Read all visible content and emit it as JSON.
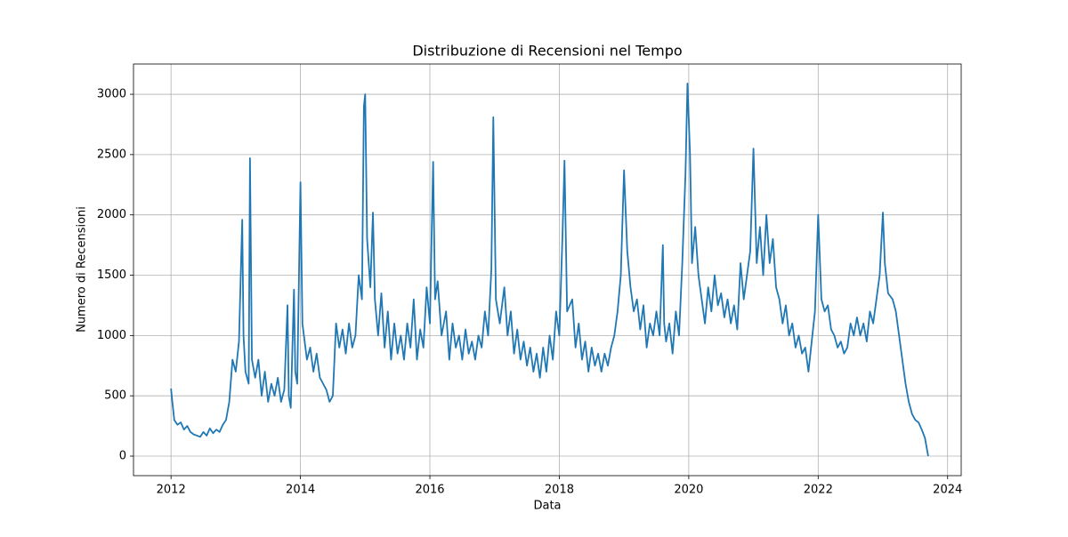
{
  "chart_data": {
    "type": "line",
    "title": "Distribuzione di Recensioni nel Tempo",
    "xlabel": "Data",
    "ylabel": "Numero di Recensioni",
    "x": [
      2012.0,
      2012.02,
      2012.05,
      2012.1,
      2012.15,
      2012.2,
      2012.25,
      2012.3,
      2012.35,
      2012.4,
      2012.45,
      2012.5,
      2012.55,
      2012.6,
      2012.65,
      2012.7,
      2012.75,
      2012.8,
      2012.85,
      2012.9,
      2012.95,
      2013.0,
      2013.05,
      2013.1,
      2013.12,
      2013.15,
      2013.2,
      2013.22,
      2013.25,
      2013.3,
      2013.35,
      2013.4,
      2013.45,
      2013.5,
      2013.55,
      2013.6,
      2013.65,
      2013.7,
      2013.75,
      2013.8,
      2013.82,
      2013.85,
      2013.9,
      2013.92,
      2013.95,
      2014.0,
      2014.03,
      2014.1,
      2014.15,
      2014.2,
      2014.25,
      2014.3,
      2014.35,
      2014.4,
      2014.45,
      2014.5,
      2014.55,
      2014.6,
      2014.65,
      2014.7,
      2014.75,
      2014.8,
      2014.85,
      2014.9,
      2014.95,
      2014.98,
      2015.0,
      2015.03,
      2015.08,
      2015.12,
      2015.15,
      2015.2,
      2015.25,
      2015.3,
      2015.35,
      2015.4,
      2015.45,
      2015.5,
      2015.55,
      2015.6,
      2015.65,
      2015.7,
      2015.75,
      2015.8,
      2015.85,
      2015.9,
      2015.95,
      2016.0,
      2016.05,
      2016.08,
      2016.12,
      2016.18,
      2016.25,
      2016.3,
      2016.35,
      2016.4,
      2016.45,
      2016.5,
      2016.55,
      2016.6,
      2016.65,
      2016.7,
      2016.75,
      2016.8,
      2016.85,
      2016.9,
      2016.95,
      2016.98,
      2017.02,
      2017.08,
      2017.15,
      2017.2,
      2017.25,
      2017.3,
      2017.35,
      2017.4,
      2017.45,
      2017.5,
      2017.55,
      2017.6,
      2017.65,
      2017.7,
      2017.75,
      2017.8,
      2017.85,
      2017.9,
      2017.95,
      2018.0,
      2018.05,
      2018.08,
      2018.12,
      2018.2,
      2018.25,
      2018.3,
      2018.35,
      2018.4,
      2018.45,
      2018.5,
      2018.55,
      2018.6,
      2018.65,
      2018.7,
      2018.75,
      2018.8,
      2018.85,
      2018.9,
      2018.95,
      2019.0,
      2019.05,
      2019.1,
      2019.15,
      2019.2,
      2019.25,
      2019.3,
      2019.35,
      2019.4,
      2019.45,
      2019.5,
      2019.55,
      2019.6,
      2019.62,
      2019.65,
      2019.7,
      2019.75,
      2019.8,
      2019.85,
      2019.9,
      2019.95,
      2019.98,
      2020.02,
      2020.05,
      2020.1,
      2020.15,
      2020.2,
      2020.25,
      2020.3,
      2020.35,
      2020.4,
      2020.45,
      2020.5,
      2020.55,
      2020.6,
      2020.65,
      2020.7,
      2020.75,
      2020.8,
      2020.85,
      2020.9,
      2020.95,
      2021.0,
      2021.05,
      2021.1,
      2021.15,
      2021.2,
      2021.25,
      2021.3,
      2021.35,
      2021.4,
      2021.45,
      2021.5,
      2021.55,
      2021.6,
      2021.65,
      2021.7,
      2021.75,
      2021.8,
      2021.85,
      2021.9,
      2021.95,
      2022.0,
      2022.05,
      2022.1,
      2022.15,
      2022.2,
      2022.25,
      2022.3,
      2022.35,
      2022.4,
      2022.45,
      2022.5,
      2022.55,
      2022.6,
      2022.65,
      2022.7,
      2022.75,
      2022.8,
      2022.85,
      2022.9,
      2022.95,
      2023.0,
      2023.03,
      2023.08,
      2023.15,
      2023.2,
      2023.25,
      2023.3,
      2023.35,
      2023.4,
      2023.45,
      2023.5,
      2023.55,
      2023.6,
      2023.65,
      2023.7
    ],
    "series": [
      {
        "name": "Recensioni",
        "color": "#1f77b4",
        "values": [
          560,
          450,
          300,
          260,
          280,
          220,
          250,
          200,
          180,
          170,
          160,
          200,
          170,
          230,
          190,
          220,
          200,
          260,
          300,
          450,
          800,
          700,
          950,
          1960,
          1000,
          700,
          600,
          2470,
          800,
          650,
          800,
          500,
          700,
          450,
          600,
          500,
          650,
          450,
          550,
          1250,
          500,
          400,
          1380,
          700,
          600,
          2270,
          1100,
          800,
          900,
          700,
          850,
          650,
          600,
          550,
          450,
          500,
          1100,
          900,
          1050,
          850,
          1100,
          900,
          1000,
          1500,
          1300,
          2900,
          3000,
          1800,
          1400,
          2020,
          1300,
          1000,
          1350,
          900,
          1200,
          800,
          1100,
          850,
          1000,
          800,
          1100,
          900,
          1300,
          800,
          1050,
          900,
          1400,
          1100,
          2440,
          1300,
          1450,
          1000,
          1200,
          800,
          1100,
          900,
          1000,
          800,
          1050,
          850,
          950,
          800,
          1000,
          900,
          1200,
          1000,
          1550,
          2810,
          1300,
          1100,
          1400,
          1000,
          1200,
          850,
          1050,
          800,
          950,
          750,
          900,
          700,
          850,
          650,
          900,
          700,
          1000,
          800,
          1200,
          1000,
          1850,
          2450,
          1200,
          1300,
          900,
          1100,
          800,
          950,
          700,
          900,
          750,
          850,
          700,
          850,
          750,
          900,
          1000,
          1200,
          1500,
          2370,
          1700,
          1400,
          1200,
          1300,
          1050,
          1250,
          900,
          1100,
          1000,
          1200,
          1000,
          1750,
          1100,
          950,
          1100,
          850,
          1200,
          1000,
          1600,
          2350,
          3090,
          2500,
          1600,
          1900,
          1500,
          1300,
          1100,
          1400,
          1200,
          1500,
          1250,
          1350,
          1150,
          1300,
          1100,
          1250,
          1050,
          1600,
          1300,
          1500,
          1700,
          2550,
          1600,
          1900,
          1500,
          2000,
          1600,
          1800,
          1400,
          1300,
          1100,
          1250,
          1000,
          1100,
          900,
          1000,
          850,
          900,
          700,
          950,
          1200,
          2000,
          1300,
          1200,
          1250,
          1050,
          1000,
          900,
          950,
          850,
          900,
          1100,
          1000,
          1150,
          1000,
          1100,
          950,
          1200,
          1100,
          1300,
          1500,
          2020,
          1600,
          1350,
          1300,
          1200,
          1000,
          800,
          600,
          450,
          350,
          300,
          280,
          220,
          150,
          0
        ]
      }
    ],
    "xlim": [
      2011.42,
      2024.21
    ],
    "xticks": [
      2012,
      2014,
      2016,
      2018,
      2020,
      2022,
      2024
    ],
    "ylim": [
      -162,
      3251
    ],
    "yticks": [
      0,
      500,
      1000,
      1500,
      2000,
      2500,
      3000
    ],
    "grid": true
  }
}
